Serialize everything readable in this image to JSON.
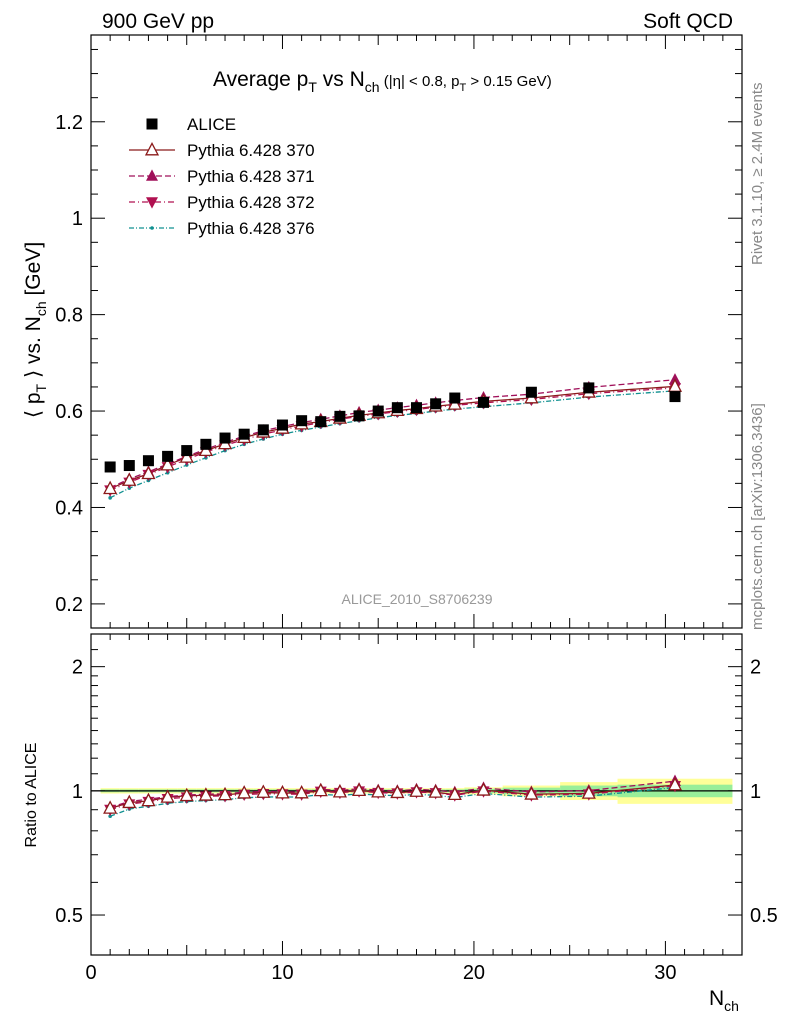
{
  "header": {
    "left": "900 GeV pp",
    "right": "Soft QCD"
  },
  "title": {
    "main": "Average p",
    "main_sub": "T",
    "vs": " vs N",
    "vs_sub": "ch",
    "cut_a": " (|η| < 0.8, p",
    "cut_sub": "T",
    "cut_b": " > 0.15 GeV)"
  },
  "side_labels": {
    "rivet": "Rivet 3.1.10, ≥ 2.4M events",
    "mcplots": "mcplots.cern.ch [arXiv:1306.3436]"
  },
  "analysis_id": "ALICE_2010_S8706239",
  "axes": {
    "main_ylabel_a": "⟨ p",
    "main_ylabel_sub1": "T",
    "main_ylabel_b": " ⟩ vs. N",
    "main_ylabel_sub2": "ch",
    "main_ylabel_c": " [GeV]",
    "ratio_ylabel": "Ratio to ALICE",
    "xlabel": "N",
    "xlabel_sub": "ch"
  },
  "colors": {
    "alice": "#000000",
    "p370": "#8b1a1a",
    "p371": "#a0105a",
    "p372": "#b01050",
    "p376": "#109090",
    "band_yellow": "#ffff99",
    "band_green": "#99ee99"
  },
  "chart_data": {
    "type": "line",
    "x_label": "N_ch",
    "y_label": "<p_T> vs. N_ch [GeV]",
    "xlim": [
      0,
      34
    ],
    "ylim": [
      0.15,
      1.38
    ],
    "ratio_ylim": [
      0.4,
      2.4
    ],
    "y_ticks": [
      0.2,
      0.4,
      0.6,
      0.8,
      1,
      1.2
    ],
    "ratio_ticks": [
      0.5,
      1,
      2
    ],
    "x_ticks": [
      0,
      10,
      20,
      30
    ],
    "legend_position": "top-left",
    "alice": {
      "name": "ALICE",
      "x": [
        1,
        2,
        3,
        4,
        5,
        6,
        7,
        8,
        9,
        10,
        11,
        12,
        13,
        14,
        15,
        16,
        17,
        18,
        19,
        20.5,
        23,
        26,
        30.5
      ],
      "y": [
        0.484,
        0.487,
        0.497,
        0.506,
        0.518,
        0.531,
        0.544,
        0.552,
        0.561,
        0.571,
        0.58,
        0.578,
        0.589,
        0.59,
        0.6,
        0.607,
        0.607,
        0.615,
        0.627,
        0.618,
        0.639,
        0.648,
        0.63
      ]
    },
    "series": [
      {
        "name": "Pythia 6.428 370",
        "marker": "triangle-up-open",
        "dash": "",
        "y": [
          0.439,
          0.456,
          0.47,
          0.488,
          0.504,
          0.518,
          0.532,
          0.545,
          0.556,
          0.564,
          0.573,
          0.578,
          0.585,
          0.591,
          0.596,
          0.601,
          0.605,
          0.61,
          0.614,
          0.62,
          0.627,
          0.639,
          0.651
        ]
      },
      {
        "name": "Pythia 6.428 371",
        "marker": "triangle-up",
        "dash": "6,3",
        "y": [
          0.441,
          0.459,
          0.474,
          0.49,
          0.506,
          0.521,
          0.535,
          0.548,
          0.559,
          0.568,
          0.576,
          0.583,
          0.59,
          0.597,
          0.602,
          0.607,
          0.612,
          0.617,
          0.622,
          0.628,
          0.635,
          0.649,
          0.665
        ]
      },
      {
        "name": "Pythia 6.428 372",
        "marker": "triangle-down",
        "dash": "6,3,1,3",
        "y": [
          0.436,
          0.452,
          0.468,
          0.484,
          0.5,
          0.515,
          0.529,
          0.541,
          0.552,
          0.561,
          0.569,
          0.576,
          0.583,
          0.589,
          0.594,
          0.599,
          0.603,
          0.608,
          0.612,
          0.617,
          0.624,
          0.636,
          0.648
        ]
      },
      {
        "name": "Pythia 6.428 376",
        "marker": "dot",
        "dash": "5,2,1,2",
        "y": [
          0.42,
          0.44,
          0.456,
          0.472,
          0.488,
          0.503,
          0.518,
          0.531,
          0.542,
          0.552,
          0.56,
          0.567,
          0.574,
          0.58,
          0.586,
          0.591,
          0.595,
          0.6,
          0.604,
          0.609,
          0.617,
          0.629,
          0.642
        ]
      }
    ],
    "ratio_band_edges": [
      0.5,
      1.5,
      2.5,
      3.5,
      4.5,
      5.5,
      6.5,
      7.5,
      8.5,
      9.5,
      10.5,
      11.5,
      12.5,
      13.5,
      14.5,
      15.5,
      16.5,
      17.5,
      18.5,
      19.5,
      21.5,
      24.5,
      27.5,
      33.5
    ],
    "ratio_band_yellow": [
      0.015,
      0.015,
      0.015,
      0.015,
      0.015,
      0.015,
      0.015,
      0.015,
      0.015,
      0.015,
      0.015,
      0.015,
      0.015,
      0.015,
      0.015,
      0.015,
      0.015,
      0.015,
      0.015,
      0.02,
      0.03,
      0.05,
      0.07
    ],
    "ratio_band_green": [
      0.008,
      0.008,
      0.008,
      0.008,
      0.008,
      0.008,
      0.008,
      0.008,
      0.008,
      0.008,
      0.008,
      0.008,
      0.008,
      0.008,
      0.008,
      0.008,
      0.008,
      0.008,
      0.008,
      0.012,
      0.018,
      0.03,
      0.035
    ]
  }
}
